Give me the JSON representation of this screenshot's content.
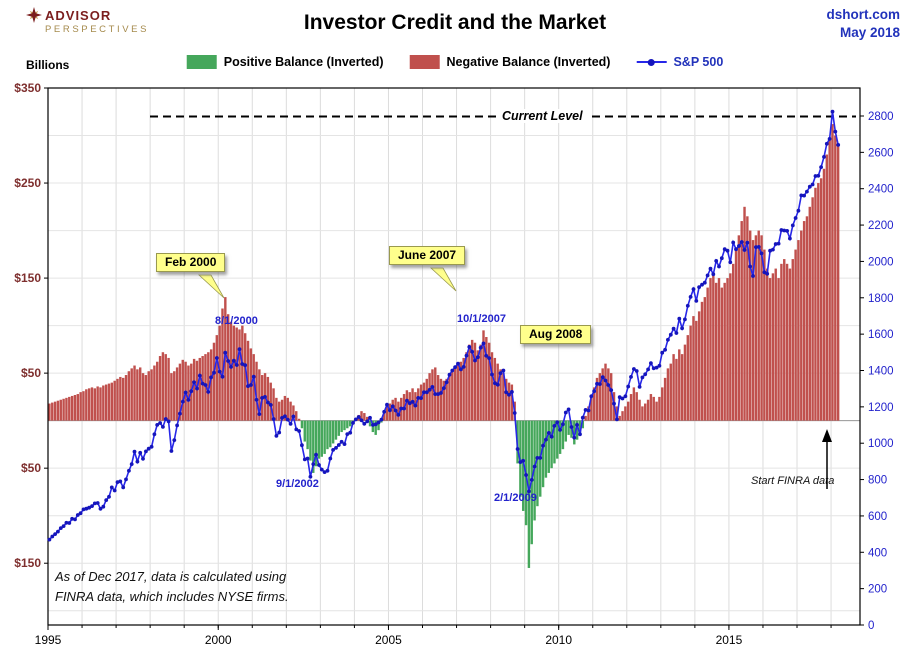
{
  "header": {
    "logo_line1": "ADVISOR",
    "logo_line2": "PERSPECTIVES",
    "title": "Investor Credit and the Market",
    "source": "dshort.com",
    "date": "May 2018"
  },
  "legend": {
    "positive": "Positive Balance (Inverted)",
    "negative": "Negative Balance (Inverted)",
    "sp500": "S&P 500"
  },
  "axis_left_title": "Billions",
  "note": {
    "line1": "As of Dec 2017,  data is calculated using",
    "line2": "FINRA data, which includes NYSE firms."
  },
  "annotations": {
    "current_level": "Current Level",
    "feb2000": "Feb 2000",
    "june2007": "June 2007",
    "aug2008": "Aug 2008",
    "d_aug2000": "8/1/2000",
    "d_oct2007": "10/1/2007",
    "d_sep2002": "9/1/2002",
    "d_feb2009": "2/1/2009",
    "start_finra": "Start FINRA data"
  },
  "colors": {
    "negative_balance": "#C0504D",
    "positive_balance": "#45A75B",
    "sp_line": "#2727E8",
    "sp_marker": "#1515BD",
    "left_axis_labels": "#7E2F2E",
    "right_axis_labels": "#2323CC",
    "header_blue": "#2233BB",
    "callout_bg": "#FFFF8C"
  },
  "chart_data": {
    "type": "bar+line combo (monthly)",
    "title": "Investor Credit and the Market",
    "x_range": [
      1995,
      2018.85
    ],
    "x_ticks": [
      {
        "v": 1995,
        "label": "1995"
      },
      {
        "v": 2000,
        "label": "2000"
      },
      {
        "v": 2005,
        "label": "2005"
      },
      {
        "v": 2010,
        "label": "2010"
      },
      {
        "v": 2015,
        "label": "2015"
      }
    ],
    "left_axis": {
      "title": "Billions",
      "range": [
        -215,
        350
      ],
      "ticks": [
        {
          "v": 350,
          "label": "$350"
        },
        {
          "v": 250,
          "label": "$250"
        },
        {
          "v": 150,
          "label": "$150"
        },
        {
          "v": 50,
          "label": "$50"
        },
        {
          "v": -50,
          "label": "$50"
        },
        {
          "v": -150,
          "label": "$150"
        }
      ]
    },
    "right_axis": {
      "title": "S&P 500",
      "range": [
        0,
        2954
      ],
      "ticks": [
        2800,
        2600,
        2400,
        2200,
        2000,
        1800,
        1600,
        1400,
        1200,
        1000,
        800,
        600,
        400,
        200,
        0
      ]
    },
    "current_level_billions": 320,
    "series": [
      {
        "name": "Credit Balance Inverted ($B, positive = Negative Balance / red, negative = Positive Balance / green)",
        "type": "bar",
        "start": "1995-01",
        "values": [
          18,
          19,
          20,
          21,
          22,
          23,
          24,
          25,
          26,
          27,
          28,
          30,
          31,
          33,
          34,
          35,
          34,
          36,
          35,
          37,
          38,
          39,
          40,
          42,
          44,
          46,
          45,
          48,
          52,
          55,
          58,
          54,
          56,
          50,
          48,
          52,
          54,
          58,
          62,
          68,
          72,
          70,
          66,
          50,
          52,
          56,
          60,
          64,
          62,
          58,
          60,
          65,
          63,
          66,
          68,
          70,
          72,
          75,
          82,
          90,
          100,
          118,
          130,
          112,
          104,
          100,
          98,
          96,
          100,
          92,
          84,
          76,
          70,
          62,
          54,
          48,
          50,
          46,
          40,
          34,
          24,
          20,
          22,
          26,
          24,
          20,
          16,
          10,
          2,
          -8,
          -22,
          -30,
          -42,
          -55,
          -48,
          -40,
          -38,
          -35,
          -30,
          -28,
          -24,
          -20,
          -16,
          -12,
          -10,
          -8,
          -6,
          -4,
          2,
          6,
          10,
          8,
          4,
          -6,
          -12,
          -15,
          -10,
          -2,
          8,
          16,
          18,
          22,
          24,
          20,
          24,
          28,
          32,
          30,
          34,
          30,
          34,
          38,
          40,
          44,
          50,
          54,
          56,
          48,
          44,
          42,
          44,
          48,
          52,
          56,
          58,
          62,
          66,
          72,
          80,
          85,
          82,
          74,
          80,
          95,
          88,
          82,
          72,
          66,
          60,
          54,
          50,
          44,
          40,
          38,
          20,
          -45,
          -80,
          -95,
          -110,
          -155,
          -130,
          -105,
          -90,
          -80,
          -70,
          -60,
          -55,
          -50,
          -45,
          -40,
          -35,
          -30,
          -22,
          -15,
          -18,
          -25,
          -20,
          -15,
          -8,
          5,
          15,
          25,
          35,
          45,
          50,
          55,
          60,
          55,
          50,
          30,
          15,
          5,
          10,
          15,
          20,
          28,
          35,
          30,
          22,
          15,
          18,
          22,
          28,
          25,
          20,
          25,
          35,
          45,
          55,
          60,
          70,
          65,
          75,
          70,
          80,
          90,
          100,
          110,
          105,
          115,
          125,
          130,
          140,
          150,
          155,
          145,
          150,
          140,
          145,
          150,
          155,
          165,
          180,
          195,
          210,
          225,
          215,
          200,
          190,
          195,
          200,
          195,
          180,
          160,
          150,
          155,
          160,
          150,
          165,
          170,
          165,
          160,
          170,
          180,
          190,
          200,
          210,
          215,
          225,
          235,
          245,
          250,
          255,
          265,
          280,
          295,
          312,
          300,
          290
        ]
      },
      {
        "name": "S&P 500",
        "type": "line",
        "start": "1995-01",
        "values": [
          470,
          487,
          500,
          514,
          533,
          544,
          562,
          561,
          584,
          581,
          605,
          615,
          636,
          640,
          645,
          654,
          669,
          671,
          639,
          651,
          687,
          705,
          757,
          740,
          786,
          790,
          757,
          801,
          848,
          885,
          954,
          899,
          947,
          914,
          955,
          970,
          980,
          1049,
          1101,
          1111,
          1090,
          1133,
          1120,
          957,
          1017,
          1098,
          1163,
          1229,
          1279,
          1238,
          1286,
          1335,
          1301,
          1372,
          1328,
          1320,
          1282,
          1362,
          1388,
          1469,
          1394,
          1366,
          1498,
          1452,
          1420,
          1454,
          1430,
          1517,
          1436,
          1429,
          1314,
          1320,
          1366,
          1239,
          1160,
          1249,
          1255,
          1224,
          1211,
          1133,
          1040,
          1059,
          1139,
          1148,
          1130,
          1106,
          1147,
          1076,
          1067,
          989,
          911,
          916,
          815,
          885,
          936,
          880,
          855,
          841,
          848,
          916,
          963,
          974,
          990,
          1008,
          995,
          1050,
          1058,
          1112,
          1131,
          1144,
          1126,
          1107,
          1120,
          1140,
          1101,
          1104,
          1114,
          1130,
          1173,
          1212,
          1181,
          1203,
          1180,
          1156,
          1191,
          1191,
          1234,
          1220,
          1228,
          1207,
          1249,
          1248,
          1280,
          1280,
          1294,
          1310,
          1270,
          1270,
          1276,
          1303,
          1335,
          1377,
          1400,
          1418,
          1438,
          1406,
          1420,
          1482,
          1530,
          1503,
          1455,
          1473,
          1526,
          1549,
          1481,
          1468,
          1378,
          1330,
          1322,
          1385,
          1400,
          1280,
          1267,
          1282,
          1166,
          968,
          896,
          903,
          825,
          735,
          798,
          872,
          919,
          919,
          987,
          1020,
          1057,
          1036,
          1095,
          1115,
          1073,
          1104,
          1169,
          1186,
          1089,
          1031,
          1101,
          1049,
          1141,
          1183,
          1180,
          1258,
          1286,
          1327,
          1325,
          1363,
          1345,
          1320,
          1292,
          1218,
          1131,
          1253,
          1246,
          1258,
          1312,
          1365,
          1408,
          1397,
          1310,
          1362,
          1379,
          1406,
          1440,
          1412,
          1416,
          1426,
          1498,
          1514,
          1569,
          1597,
          1630,
          1606,
          1685,
          1632,
          1681,
          1756,
          1805,
          1848,
          1783,
          1859,
          1872,
          1883,
          1923,
          1960,
          1930,
          2003,
          1972,
          2018,
          2067,
          2059,
          1995,
          2104,
          2067,
          2085,
          2107,
          2063,
          2103,
          1972,
          1920,
          2079,
          2080,
          2044,
          1940,
          1932,
          2059,
          2065,
          2096,
          2098,
          2173,
          2170,
          2168,
          2126,
          2198,
          2239,
          2279,
          2363,
          2362,
          2384,
          2411,
          2423,
          2470,
          2471,
          2519,
          2575,
          2647,
          2674,
          2824,
          2714,
          2641
        ]
      }
    ]
  }
}
